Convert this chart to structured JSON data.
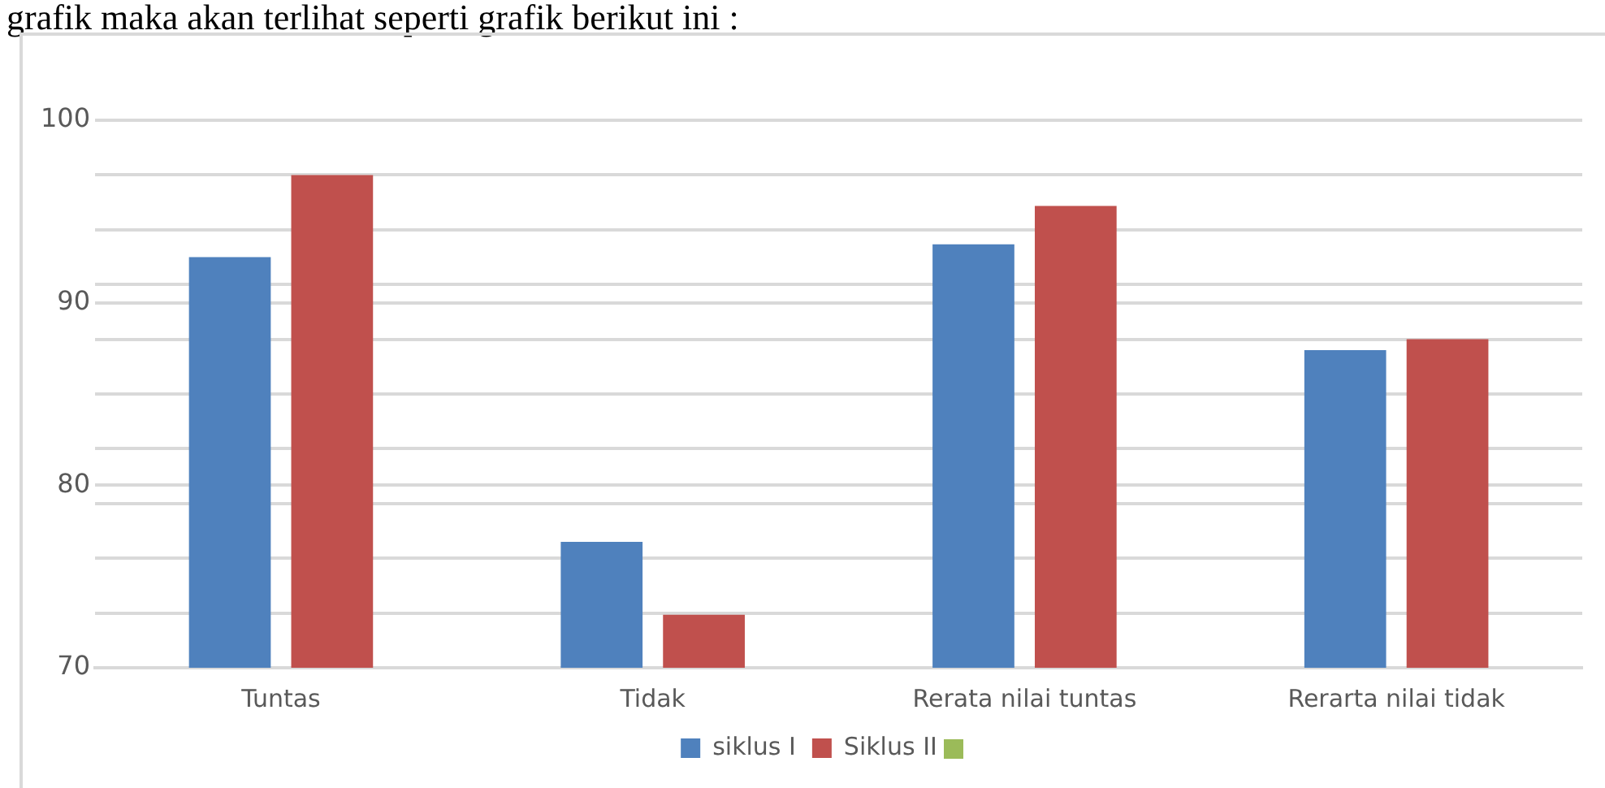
{
  "chart_data": {
    "type": "bar",
    "annotations": [
      "grafik maka akan terlihat seperti grafik berikut ini :"
    ],
    "categories": [
      "Tuntas",
      "Tidak",
      "Rerata nilai tuntas",
      "Rerarta nilai tidak"
    ],
    "series": [
      {
        "name": "siklus I",
        "color": "#4f81bd",
        "values": [
          92.5,
          76.9,
          93.2,
          87.4
        ]
      },
      {
        "name": "Siklus II",
        "color": "#c0504d",
        "values": [
          97,
          72.9,
          95.3,
          88
        ]
      }
    ],
    "ylim": [
      70,
      100
    ],
    "yticks": [
      70,
      {
        "value": 73,
        "label": null
      },
      {
        "value": 76,
        "label": null
      },
      {
        "value": 79,
        "label": null
      },
      80,
      {
        "value": 82,
        "label": null
      },
      {
        "value": 85,
        "label": null
      },
      {
        "value": 88,
        "label": null
      },
      90,
      {
        "value": 91,
        "label": null
      },
      {
        "value": 94,
        "label": null
      },
      {
        "value": 97,
        "label": null
      },
      100
    ],
    "grid": "y",
    "legend": "bottom"
  }
}
